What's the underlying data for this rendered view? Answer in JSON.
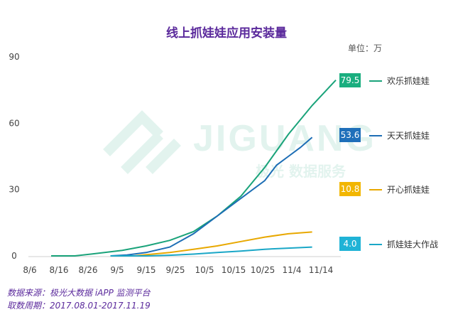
{
  "chart_data": {
    "type": "line",
    "title": "线上抓娃娃应用安装量",
    "unit_label": "单位：万",
    "categories": [
      "8/6",
      "8/16",
      "8/26",
      "9/5",
      "9/15",
      "9/25",
      "10/5",
      "10/15",
      "10/25",
      "11/4",
      "11/14"
    ],
    "y_ticks": [
      0,
      30,
      60,
      90
    ],
    "ylim": [
      0,
      90
    ],
    "xlabel": "",
    "ylabel": "",
    "series": [
      {
        "name": "欢乐抓娃娃",
        "color": "#1aa37a",
        "label_bg": "#1aae7f",
        "end_label": "79.5",
        "points": [
          [
            0,
            0
          ],
          [
            1,
            0
          ],
          [
            2,
            1.2
          ],
          [
            3,
            2.5
          ],
          [
            4,
            4.5
          ],
          [
            5,
            7
          ],
          [
            6,
            11
          ],
          [
            7,
            18
          ],
          [
            8,
            27
          ],
          [
            9,
            40
          ],
          [
            10,
            55
          ],
          [
            11,
            68
          ],
          [
            12,
            79.5
          ]
        ]
      },
      {
        "name": "天天抓娃娃",
        "color": "#1d6eb5",
        "label_bg": "#1f6fba",
        "end_label": "53.6",
        "points": [
          [
            2.5,
            0
          ],
          [
            3.2,
            0.4
          ],
          [
            4,
            1.5
          ],
          [
            5,
            4
          ],
          [
            5.5,
            7
          ],
          [
            6,
            10
          ],
          [
            6.5,
            14
          ],
          [
            7,
            18
          ],
          [
            8,
            26
          ],
          [
            9,
            34
          ],
          [
            9.5,
            41
          ],
          [
            10,
            45
          ],
          [
            10.5,
            49
          ],
          [
            11,
            53.6
          ]
        ]
      },
      {
        "name": "开心抓娃娃",
        "color": "#e8a800",
        "label_bg": "#f2b600",
        "end_label": "10.8",
        "points": [
          [
            2.5,
            0
          ],
          [
            3.5,
            0
          ],
          [
            4,
            0.5
          ],
          [
            5,
            1.5
          ],
          [
            6,
            3
          ],
          [
            7,
            4.5
          ],
          [
            8,
            6.5
          ],
          [
            9,
            8.5
          ],
          [
            10,
            10
          ],
          [
            11,
            10.8
          ]
        ]
      },
      {
        "name": "抓娃娃大作战",
        "color": "#1aa7c7",
        "label_bg": "#1fb3d6",
        "end_label": "4.0",
        "points": [
          [
            2.5,
            0
          ],
          [
            4,
            0
          ],
          [
            5,
            0.3
          ],
          [
            6,
            0.8
          ],
          [
            7,
            1.5
          ],
          [
            8,
            2.2
          ],
          [
            9,
            3
          ],
          [
            10,
            3.5
          ],
          [
            11,
            4.0
          ]
        ]
      }
    ],
    "watermark": {
      "text": "JIGUANG",
      "subtext": "极光 数据服务"
    }
  },
  "footer": {
    "source": "数据来源：极光大数据 iAPP 监测平台",
    "period": "取数周期：2017.08.01-2017.11.19"
  }
}
